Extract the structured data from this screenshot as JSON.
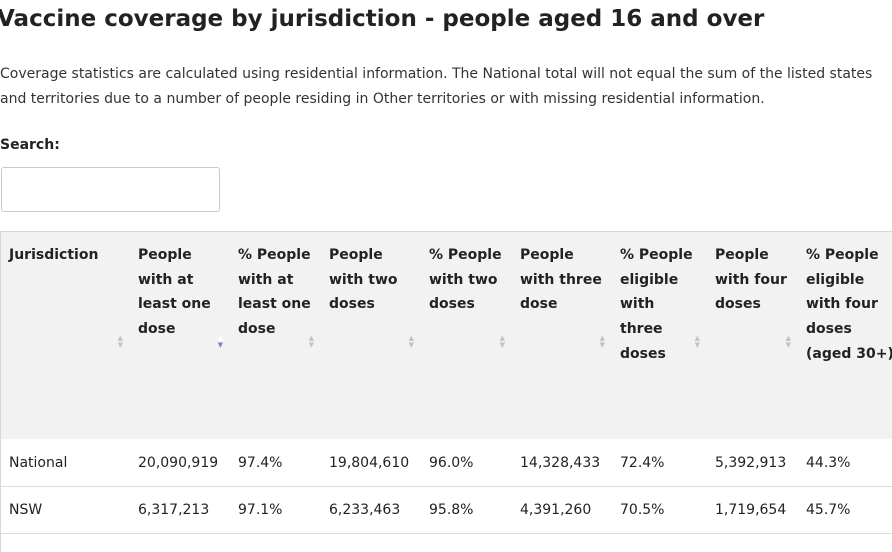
{
  "page": {
    "title": "Vaccine coverage by jurisdiction - people aged 16 and over",
    "description": "Coverage statistics are calculated using residential information. The National total will not equal the sum of the listed states and territories due to a number of people residing in Other territories or with missing residential information.",
    "search_label": "Search:",
    "search_value": ""
  },
  "table": {
    "columns": [
      {
        "label": "Jurisdiction",
        "sort": "none"
      },
      {
        "label": "People with at least one dose",
        "sort": "desc"
      },
      {
        "label": "% People with at least one dose",
        "sort": "none"
      },
      {
        "label": "People with two doses",
        "sort": "none"
      },
      {
        "label": "% People with two doses",
        "sort": "none"
      },
      {
        "label": "People with three dose",
        "sort": "none"
      },
      {
        "label": "% People eligible with three doses",
        "sort": "none"
      },
      {
        "label": "People with four doses",
        "sort": "none"
      },
      {
        "label": "% People eligible with four doses (aged 30+)",
        "sort": "none"
      }
    ],
    "rows": [
      [
        "National",
        "20,090,919",
        "97.4%",
        "19,804,610",
        "96.0%",
        "14,328,433",
        "72.4%",
        "5,392,913",
        "44.3%"
      ],
      [
        "NSW",
        "6,317,213",
        "97.1%",
        "6,233,463",
        "95.8%",
        "4,391,260",
        "70.5%",
        "1,719,654",
        "45.7%"
      ]
    ]
  },
  "sort_icons": {
    "ascending": "sort-up-icon",
    "descending": "sort-down-icon"
  },
  "colors": {
    "active_sort": "#7a86cc",
    "header_bg": "#f2f2f2"
  }
}
